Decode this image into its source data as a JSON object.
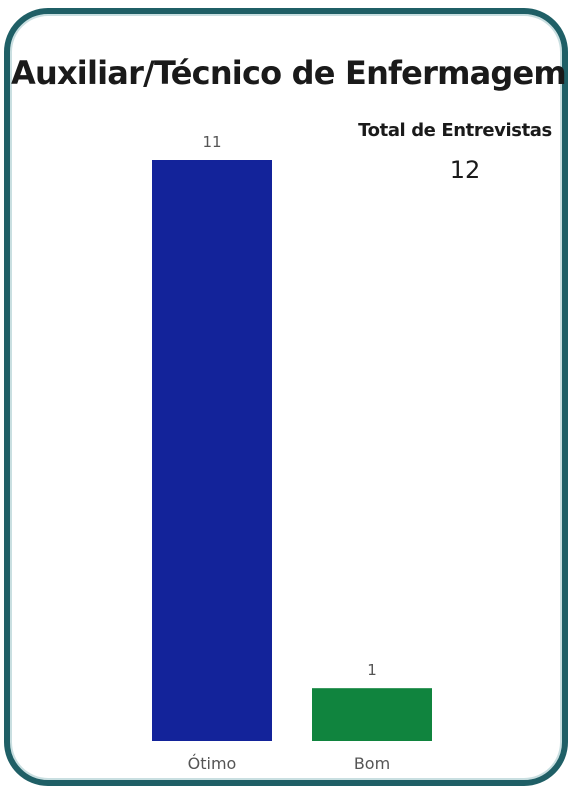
{
  "header": {
    "title": "Auxiliar/Técnico de Enfermagem"
  },
  "kpi": {
    "label": "Total de Entrevistas",
    "value": "12"
  },
  "colors": {
    "border": "#1f5f66",
    "bar_otimo": "#13239a",
    "bar_bom": "#10843e"
  },
  "chart_data": {
    "type": "bar",
    "categories": [
      "Ótimo",
      "Bom"
    ],
    "values": [
      11,
      1
    ],
    "colors": [
      "#13239a",
      "#10843e"
    ],
    "title": "Auxiliar/Técnico de Enfermagem",
    "xlabel": "",
    "ylabel": "",
    "ylim": [
      0,
      11
    ],
    "data_labels": true,
    "grid": false,
    "legend": "none"
  }
}
